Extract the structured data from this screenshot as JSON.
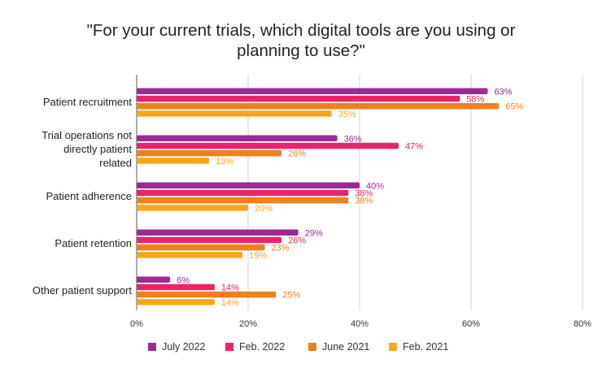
{
  "chart_data": {
    "type": "bar",
    "orientation": "horizontal",
    "title": "\"For your current trials, which digital tools are you using or planning to use?\"",
    "categories": [
      [
        "Patient recruitment"
      ],
      [
        "Trial operations not",
        "directly patient",
        "related"
      ],
      [
        "Patient adherence"
      ],
      [
        "Patient retention"
      ],
      [
        "Other patient support"
      ]
    ],
    "series": [
      {
        "name": "July 2022",
        "color": "#9c2a95",
        "values": [
          63,
          36,
          40,
          29,
          6
        ]
      },
      {
        "name": "Feb. 2022",
        "color": "#e8246a",
        "values": [
          58,
          47,
          38,
          26,
          14
        ]
      },
      {
        "name": "June 2021",
        "color": "#f07f1d",
        "values": [
          65,
          26,
          38,
          23,
          25
        ]
      },
      {
        "name": "Feb. 2021",
        "color": "#f7a71b",
        "values": [
          35,
          13,
          20,
          19,
          14
        ]
      }
    ],
    "value_suffix": "%",
    "xlim": [
      0,
      80
    ],
    "xticks": [
      "0%",
      "20%",
      "40%",
      "60%",
      "80%"
    ],
    "grid": true,
    "legend": "bottom"
  }
}
